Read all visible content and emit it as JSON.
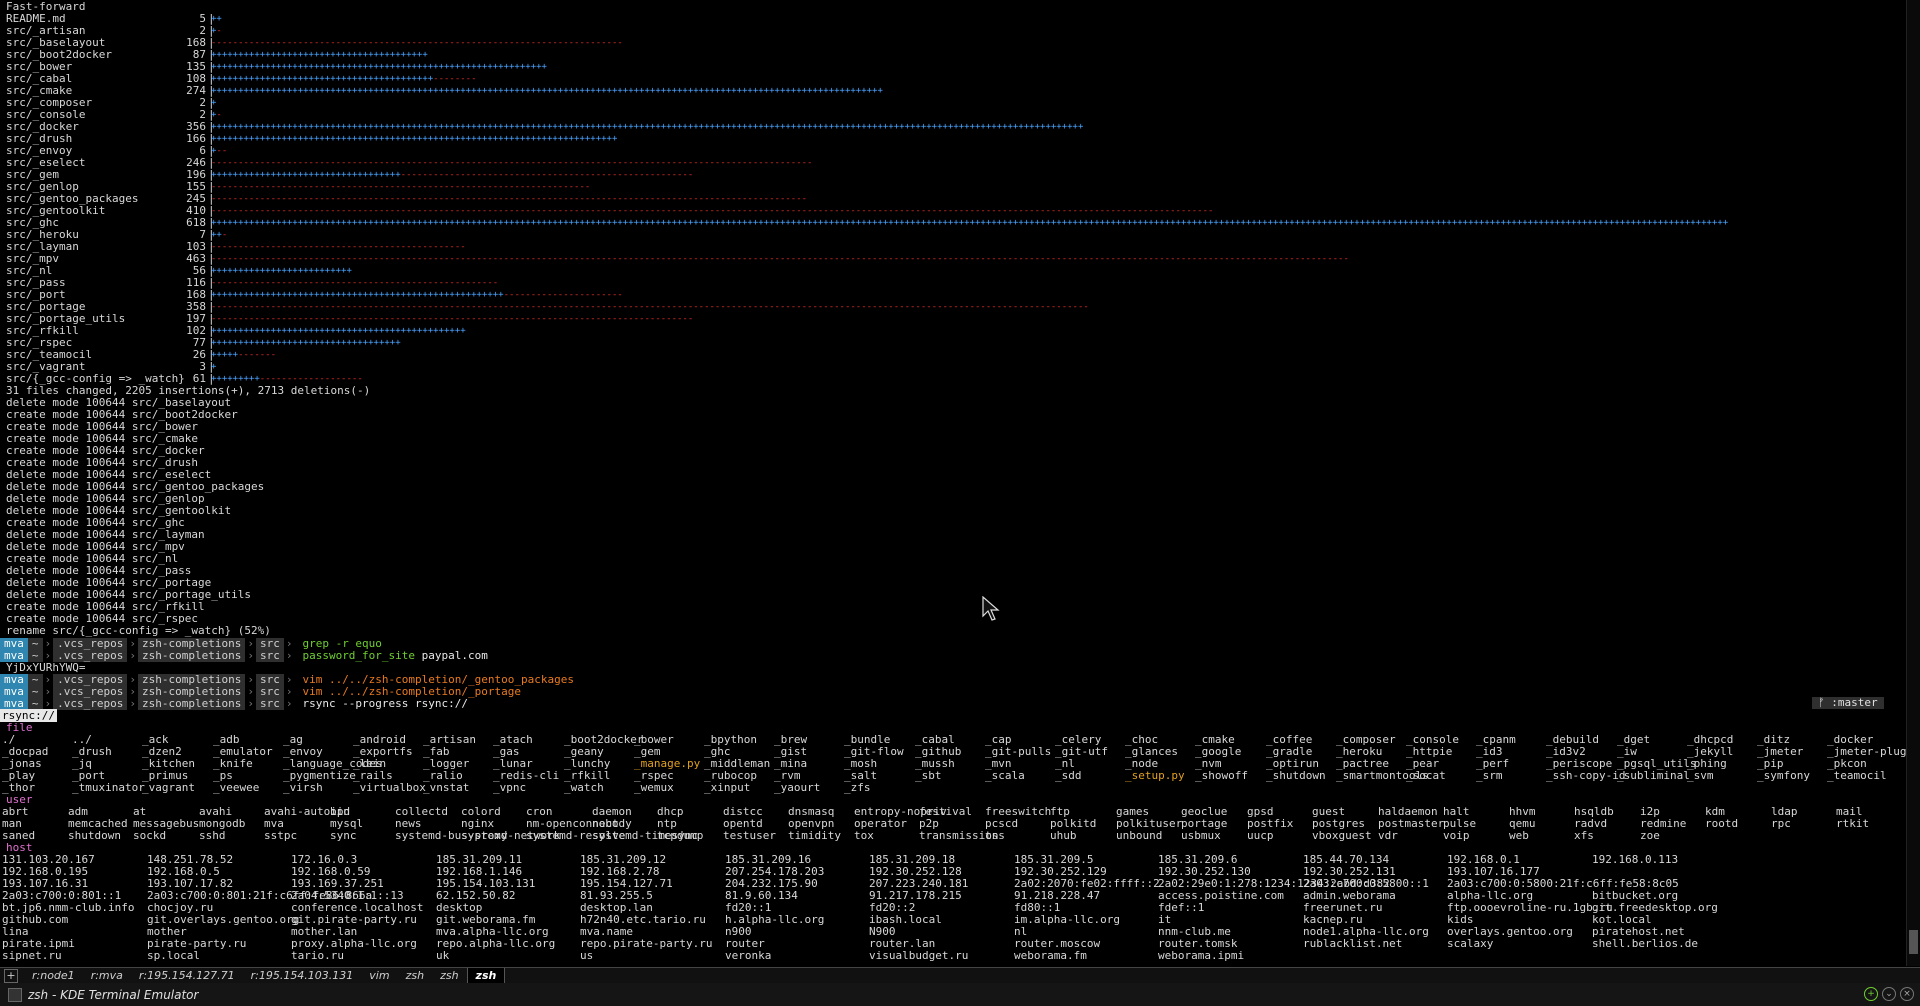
{
  "header_line": "Fast-forward",
  "stats": [
    {
      "name": "README.md",
      "count": "5",
      "ins": 2,
      "del": 0
    },
    {
      "name": "src/_artisan",
      "count": "2",
      "ins": 1,
      "del": 1
    },
    {
      "name": "src/_baselayout",
      "count": "168",
      "ins": 0,
      "del": 76
    },
    {
      "name": "src/_boot2docker",
      "count": "87",
      "ins": 40,
      "del": 0
    },
    {
      "name": "src/_bower",
      "count": "135",
      "ins": 62,
      "del": 0
    },
    {
      "name": "src/_cabal",
      "count": "108",
      "ins": 41,
      "del": 8
    },
    {
      "name": "src/_cmake",
      "count": "274",
      "ins": 124,
      "del": 0
    },
    {
      "name": "src/_composer",
      "count": "2",
      "ins": 1,
      "del": 0
    },
    {
      "name": "src/_console",
      "count": "2",
      "ins": 1,
      "del": 1
    },
    {
      "name": "src/_docker",
      "count": "356",
      "ins": 161,
      "del": 0
    },
    {
      "name": "src/_drush",
      "count": "166",
      "ins": 75,
      "del": 0
    },
    {
      "name": "src/_envoy",
      "count": "6",
      "ins": 1,
      "del": 2
    },
    {
      "name": "src/_eselect",
      "count": "246",
      "ins": 0,
      "del": 111
    },
    {
      "name": "src/_gem",
      "count": "196",
      "ins": 35,
      "del": 54
    },
    {
      "name": "src/_genlop",
      "count": "155",
      "ins": 0,
      "del": 70
    },
    {
      "name": "src/_gentoo_packages",
      "count": "245",
      "ins": 0,
      "del": 110
    },
    {
      "name": "src/_gentoolkit",
      "count": "410",
      "ins": 0,
      "del": 185
    },
    {
      "name": "src/_ghc",
      "count": "618",
      "ins": 280,
      "del": 0
    },
    {
      "name": "src/_heroku",
      "count": "7",
      "ins": 2,
      "del": 1
    },
    {
      "name": "src/_layman",
      "count": "103",
      "ins": 0,
      "del": 47
    },
    {
      "name": "src/_mpv",
      "count": "463",
      "ins": 0,
      "del": 210
    },
    {
      "name": "src/_nl",
      "count": "56",
      "ins": 26,
      "del": 0
    },
    {
      "name": "src/_pass",
      "count": "116",
      "ins": 0,
      "del": 53
    },
    {
      "name": "src/_port",
      "count": "168",
      "ins": 54,
      "del": 22
    },
    {
      "name": "src/_portage",
      "count": "358",
      "ins": 0,
      "del": 162
    },
    {
      "name": "src/_portage_utils",
      "count": "197",
      "ins": 0,
      "del": 89
    },
    {
      "name": "src/_rfkill",
      "count": "102",
      "ins": 47,
      "del": 0
    },
    {
      "name": "src/_rspec",
      "count": "77",
      "ins": 35,
      "del": 0
    },
    {
      "name": "src/_teamocil",
      "count": "26",
      "ins": 5,
      "del": 7
    },
    {
      "name": "src/_vagrant",
      "count": "3",
      "ins": 1,
      "del": 0
    },
    {
      "name": "src/{_gcc-config => _watch}",
      "count": "61",
      "ins": 9,
      "del": 19
    }
  ],
  "summary_line": "31 files changed, 2205 insertions(+), 2713 deletions(-)",
  "mode_lines": [
    "delete mode 100644 src/_baselayout",
    "create mode 100644 src/_boot2docker",
    "create mode 100644 src/_bower",
    "create mode 100644 src/_cmake",
    "create mode 100644 src/_docker",
    "create mode 100644 src/_drush",
    "delete mode 100644 src/_eselect",
    "delete mode 100644 src/_gentoo_packages",
    "delete mode 100644 src/_genlop",
    "delete mode 100644 src/_gentoolkit",
    "create mode 100644 src/_ghc",
    "delete mode 100644 src/_layman",
    "delete mode 100644 src/_mpv",
    "create mode 100644 src/_nl",
    "delete mode 100644 src/_pass",
    "delete mode 100644 src/_portage",
    "delete mode 100644 src/_portage_utils",
    "create mode 100644 src/_rfkill",
    "create mode 100644 src/_rspec",
    "rename src/{_gcc-config => _watch} (52%)"
  ],
  "prompt": {
    "user": "mva",
    "home": "~",
    "dir1": ".vcs_repos",
    "dir2": "zsh-completions",
    "dir3": "src"
  },
  "commands": [
    {
      "text": "grep -r equo",
      "style": "c-green",
      "after": ""
    },
    {
      "text": "password_for_site",
      "style": "c-green",
      "after": " paypal.com"
    },
    {
      "text": "",
      "style": "",
      "after": ""
    },
    {
      "text": "vim ../../zsh-completion/_gentoo_packages",
      "style": "c-orange",
      "after": ""
    },
    {
      "text": "vim ../../zsh-completion/_portage",
      "style": "c-orange",
      "after": ""
    },
    {
      "text": "rsync --progress rsync://",
      "style": "c-white",
      "after": ""
    }
  ],
  "yjd_line": "YjDxYURhYWQ=",
  "rsync_line": "rsync://",
  "git_badge": "ᚠ :master",
  "sections": {
    "file_title": "file",
    "file_rows": [
      [
        "./",
        "../",
        "_ack",
        "_adb",
        "_ag",
        "_android",
        "_artisan",
        "_atach",
        "_boot2docker",
        "_bower",
        "_bpython",
        "_brew",
        "_bundle",
        "_cabal",
        "_cap",
        "_celery",
        "_choc",
        "_cmake",
        "_coffee",
        "_composer",
        "_console",
        "_cpanm",
        "_debuild",
        "_dget",
        "_dhcpcd",
        "_ditz",
        "_docker"
      ],
      [
        "_docpad",
        "_drush",
        "_dzen2",
        "_emulator",
        "_envoy",
        "_exportfs",
        "_fab",
        "_gas",
        "_geany",
        "_gem",
        "_ghc",
        "_gist",
        "_git-flow",
        "_github",
        "_git-pulls",
        "_git-utf",
        "_glances",
        "_google",
        "_gradle",
        "_heroku",
        "_httpie",
        "_id3",
        "_id3v2",
        "_iw",
        "_jekyll",
        "_jmeter",
        "_jmeter-plugins"
      ],
      [
        "_jonas",
        "_jq",
        "_kitchen",
        "_knife",
        "_language_codes",
        "_lein",
        "_logger",
        "_lunar",
        "_lunchy",
        "_manage.py",
        "_middleman",
        "_mina",
        "_mosh",
        "_mussh",
        "_mvn",
        "_nl",
        "_node",
        "_nvm",
        "_optirun",
        "_pactree",
        "_pear",
        "_perf",
        "_periscope",
        "_pgsql_utils",
        "_phing",
        "_pip",
        "_pkcon"
      ],
      [
        "_play",
        "_port",
        "_primus",
        "_ps",
        "_pygmentize",
        "_rails",
        "_ralio",
        "_redis-cli",
        "_rfkill",
        "_rspec",
        "_rubocop",
        "_rvm",
        "_salt",
        "_sbt",
        "_scala",
        "_sdd",
        "_setup.py",
        "_showoff",
        "_shutdown",
        "_smartmontools",
        "_socat",
        "_srm",
        "_ssh-copy-id",
        "_subliminal",
        "_svm",
        "_symfony",
        "_teamocil"
      ],
      [
        "_thor",
        "_tmuxinator",
        "_vagrant",
        "_veewee",
        "_virsh",
        "_virtualbox",
        "_vnstat",
        "_vpnc",
        "_watch",
        "_wemux",
        "_xinput",
        "_yaourt",
        "_zfs"
      ]
    ],
    "file_yellow": [
      "_manage.py",
      "_setup.py"
    ],
    "user_title": "user",
    "user_rows": [
      [
        "abrt",
        "adm",
        "at",
        "avahi",
        "avahi-autoipd",
        "bin",
        "collectd",
        "colord",
        "cron",
        "daemon",
        "dhcp",
        "distcc",
        "dnsmasq",
        "entropy-nopriv",
        "festival",
        "freeswitch",
        "ftp",
        "games",
        "geoclue",
        "gpsd",
        "guest",
        "haldaemon",
        "halt",
        "hhvm",
        "hsqldb",
        "i2p",
        "kdm",
        "ldap",
        "mail"
      ],
      [
        "man",
        "memcached",
        "messagebus",
        "mongodb",
        "mva",
        "mysql",
        "news",
        "nginx",
        "nm-openconnect",
        "nobody",
        "ntp",
        "opentd",
        "openvpn",
        "operator",
        "p2p",
        "pcscd",
        "polkitd",
        "polkituser",
        "portage",
        "postfix",
        "postgres",
        "postmaster",
        "pulse",
        "qemu",
        "radvd",
        "redmine",
        "rootd",
        "rpc",
        "rtkit"
      ],
      [
        "saned",
        "shutdown",
        "sockd",
        "sshd",
        "sstpc",
        "sync",
        "systemd-bus-proxy",
        "systemd-network",
        "systemd-resolve",
        "systemd-timesync",
        "tcpdump",
        "testuser",
        "timidity",
        "tox",
        "transmission",
        "tss",
        "uhub",
        "unbound",
        "usbmux",
        "uucp",
        "vboxguest",
        "vdr",
        "voip",
        "web",
        "xfs",
        "zoe"
      ]
    ],
    "host_title": "host",
    "host_rows": [
      [
        "131.103.20.167",
        "148.251.78.52",
        "172.16.0.3",
        "185.31.209.11",
        "185.31.209.12",
        "185.31.209.16",
        "185.31.209.18",
        "185.31.209.5",
        "185.31.209.6",
        "185.44.70.134",
        "192.168.0.1",
        "192.168.0.113"
      ],
      [
        "192.168.0.195",
        "192.168.0.5",
        "192.168.0.59",
        "192.168.1.146",
        "192.168.2.78",
        "207.254.178.203",
        "192.30.252.128",
        "192.30.252.129",
        "192.30.252.130",
        "192.30.252.131",
        "193.107.16.177"
      ],
      [
        "193.107.16.31",
        "193.107.17.82",
        "193.169.37.251",
        "195.154.103.131",
        "195.154.127.71",
        "204.232.175.90",
        "207.223.240.181",
        "2a02:2070:fe02:ffff::2",
        "2a02:29e0:1:278:1234:1234:2abd:d382",
        "2a03:c700:0:5800::1",
        "2a03:c700:0:5800:21f:c6ff:fe58:8c05"
      ],
      [
        "2a03:c700:0:801::1",
        "2a03:c700:0:801:21f:c6ff:fe86:866a",
        "2a04:5340:1:1::13",
        "62.152.50.82",
        "81.93.255.5",
        "81.9.60.134",
        "91.217.178.215",
        "91.218.228.47",
        "access.poistine.com",
        "admin.weborama",
        "alpha-llc.org",
        "bitbucket.org"
      ],
      [
        "bt.jp6.nmm-club.info",
        "chocjoy.ru",
        "conference.localhost",
        "desktop",
        "desktop.lan",
        "fd20::1",
        "fd20::2",
        "fd80::1",
        "fdef::1",
        "freerunet.ru",
        "ftp.oooevroline-ru.1gb.ru",
        "git.freedesktop.org"
      ],
      [
        "github.com",
        "git.overlays.gentoo.org",
        "git.pirate-party.ru",
        "git.weborama.fm",
        "h72n40.etc.tario.ru",
        "h.alpha-llc.org",
        "ibash.local",
        "im.alpha-llc.org",
        "it",
        "kacnep.ru",
        "kids",
        "kot.local"
      ],
      [
        "lina",
        "mother",
        "mother.lan",
        "mva.alpha-llc.org",
        "mva.name",
        "n900",
        "N900",
        "nl",
        "nnm-club.me",
        "node1.alpha-llc.org",
        "overlays.gentoo.org",
        "piratehost.net"
      ],
      [
        "pirate.ipmi",
        "pirate-party.ru",
        "proxy.alpha-llc.org",
        "repo.alpha-llc.org",
        "repo.pirate-party.ru",
        "router",
        "router.lan",
        "router.moscow",
        "router.tomsk",
        "rublacklist.net",
        "scalaxy",
        "shell.berlios.de"
      ],
      [
        "sipnet.ru",
        "sp.local",
        "tario.ru",
        "uk",
        "us",
        "veronka",
        "visualbudget.ru",
        "weborama.fm",
        "weborama.ipmi"
      ]
    ]
  },
  "tabs": [
    {
      "label": "r:node1",
      "active": false
    },
    {
      "label": "r:mva",
      "active": false
    },
    {
      "label": "r:195.154.127.71",
      "active": false
    },
    {
      "label": "r:195.154.103.131",
      "active": false
    },
    {
      "label": "vim",
      "active": false
    },
    {
      "label": "zsh",
      "active": false
    },
    {
      "label": "zsh",
      "active": false
    },
    {
      "label": "zsh",
      "active": true
    }
  ],
  "window_title": "zsh - KDE Terminal Emulator",
  "colors": {
    "insertion": "#4aa3ff",
    "deletion": "#e0302a",
    "prompt_user_bg": "#2f86b0",
    "section_title": "#e070d0"
  }
}
